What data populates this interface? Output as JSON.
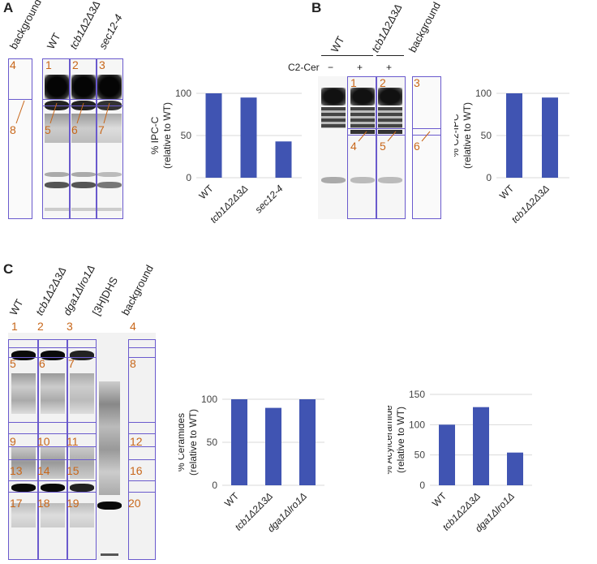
{
  "panels": {
    "A": {
      "letter": "A",
      "lanes": [
        "background",
        "WT",
        "tcb1Δ2Δ3Δ",
        "sec12-4"
      ],
      "markers": [
        "4",
        "1",
        "2",
        "3",
        "8",
        "5",
        "6",
        "7"
      ],
      "colors": {
        "box": "#6a5acd",
        "marker": "#c8671a"
      }
    },
    "B": {
      "letter": "B",
      "lanes": [
        "WT",
        "tcb1Δ2Δ3Δ",
        "background"
      ],
      "treatment_label": "C2-Cer",
      "treatment_signs": [
        "−",
        "+",
        "+"
      ],
      "markers": [
        "1",
        "2",
        "3",
        "4",
        "5",
        "6"
      ]
    },
    "C": {
      "letter": "C",
      "lanes": [
        "WT",
        "tcb1Δ2Δ3Δ",
        "dga1Δlro1Δ",
        "[3H]DHS",
        "background"
      ],
      "markers": [
        "1",
        "2",
        "3",
        "4",
        "5",
        "6",
        "7",
        "8",
        "9",
        "10",
        "11",
        "12",
        "13",
        "14",
        "15",
        "16",
        "17",
        "18",
        "19",
        "20"
      ]
    }
  },
  "chart_data": [
    {
      "type": "bar",
      "panel": "A",
      "categories": [
        "WT",
        "tcb1Δ2Δ3Δ",
        "sec12-4"
      ],
      "values": [
        100,
        95,
        43
      ],
      "ylabel_line1": "% IPC-C",
      "ylabel_line2": "(relative to WT)",
      "yticks": [
        0,
        50,
        100
      ],
      "ylim": [
        0,
        100
      ],
      "bar_color": "#4054b2",
      "grid": true
    },
    {
      "type": "bar",
      "panel": "B",
      "categories": [
        "WT",
        "tcb1Δ2Δ3Δ"
      ],
      "values": [
        100,
        95
      ],
      "ylabel_line1": "% C2-IPC",
      "ylabel_line2": "(relative to WT)",
      "yticks": [
        0,
        50,
        100
      ],
      "ylim": [
        0,
        100
      ],
      "bar_color": "#4054b2",
      "grid": true
    },
    {
      "type": "bar",
      "panel": "C",
      "categories": [
        "WT",
        "tcb1Δ2Δ3Δ",
        "dga1Δlro1Δ"
      ],
      "values": [
        100,
        90,
        100
      ],
      "ylabel_line1": "% Ceramides",
      "ylabel_line2": "(relative to WT)",
      "yticks": [
        0,
        50,
        100
      ],
      "ylim": [
        0,
        100
      ],
      "bar_color": "#4054b2",
      "grid": true
    },
    {
      "type": "bar",
      "panel": "C",
      "categories": [
        "WT",
        "tcb1Δ2Δ3Δ",
        "dga1Δlro1Δ"
      ],
      "values": [
        100,
        129,
        54
      ],
      "ylabel_line1": "% Acylceramide",
      "ylabel_line2": "(relative to WT)",
      "yticks": [
        0,
        50,
        100,
        150
      ],
      "ylim": [
        0,
        150
      ],
      "bar_color": "#4054b2",
      "grid": true
    }
  ]
}
